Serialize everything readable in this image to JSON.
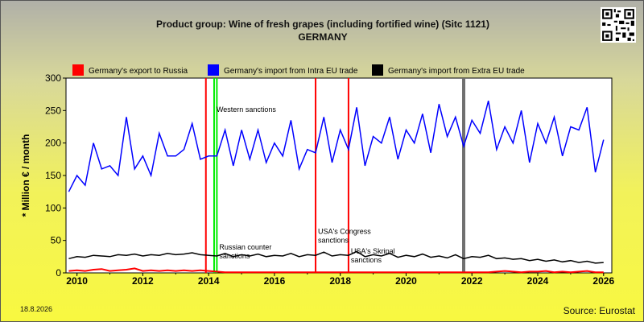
{
  "header": {
    "title": "Product group: Wine of fresh grapes (including fortified wine) (Sitc 1121)",
    "subtitle": "GERMANY"
  },
  "footer": {
    "date": "18.8.2026",
    "source": "Source: Eurostat"
  },
  "colors": {
    "export_russia": "#ff0000",
    "intra_eu": "#0000ff",
    "extra_eu": "#000000",
    "event_red": "#ff0000",
    "event_green": "#00ee00",
    "event_gray": "#707070"
  },
  "chart_data": {
    "type": "line",
    "title": "Product group: Wine of fresh grapes (including fortified wine) (Sitc 1121)",
    "subtitle": "GERMANY",
    "ylabel": "* Million € / month",
    "xlabel": "",
    "ylim": [
      0,
      300
    ],
    "yticks": [
      0,
      50,
      100,
      150,
      200,
      250,
      300
    ],
    "xlim": [
      "2009-09",
      "2026-04"
    ],
    "xticks": [
      "2010",
      "2012",
      "2014",
      "2016",
      "2018",
      "2020",
      "2022",
      "2024",
      "2026"
    ],
    "grid": false,
    "legend_position": "top",
    "series": [
      {
        "name": "Germany's export to Russia",
        "color": "#ff0000",
        "resolution": "quarterly",
        "x": [
          "2009-10",
          "2010-01",
          "2010-04",
          "2010-07",
          "2010-10",
          "2011-01",
          "2011-04",
          "2011-07",
          "2011-10",
          "2012-01",
          "2012-04",
          "2012-07",
          "2012-10",
          "2013-01",
          "2013-04",
          "2013-07",
          "2013-10",
          "2014-01",
          "2014-04",
          "2014-07",
          "2014-10",
          "2015-01",
          "2015-04",
          "2015-07",
          "2015-10",
          "2016-01",
          "2016-04",
          "2016-07",
          "2016-10",
          "2017-01",
          "2017-04",
          "2017-07",
          "2017-10",
          "2018-01",
          "2018-04",
          "2018-07",
          "2018-10",
          "2019-01",
          "2019-04",
          "2019-07",
          "2019-10",
          "2020-01",
          "2020-04",
          "2020-07",
          "2020-10",
          "2021-01",
          "2021-04",
          "2021-07",
          "2021-10",
          "2022-01",
          "2022-04",
          "2022-07",
          "2022-10",
          "2023-01",
          "2023-04",
          "2023-07",
          "2023-10",
          "2024-01",
          "2024-04",
          "2024-07",
          "2024-10",
          "2025-01",
          "2025-04",
          "2025-07",
          "2025-10",
          "2026-01"
        ],
        "values": [
          3,
          4,
          3,
          5,
          6,
          3,
          4,
          5,
          7,
          3,
          4,
          3,
          4,
          3,
          4,
          3,
          4,
          3,
          2,
          1,
          1,
          1,
          1,
          1,
          1,
          1,
          1,
          1,
          1,
          1,
          1,
          1,
          1,
          1,
          1,
          1,
          1,
          1,
          1,
          1,
          1,
          1,
          1,
          1,
          1,
          1,
          1,
          1,
          1,
          1,
          1,
          1,
          2,
          3,
          2,
          1,
          2,
          2,
          3,
          1,
          2,
          1,
          2,
          3,
          1,
          1
        ]
      },
      {
        "name": "Germany's import from Intra EU trade",
        "color": "#0000ff",
        "resolution": "quarterly",
        "x": [
          "2009-10",
          "2010-01",
          "2010-04",
          "2010-07",
          "2010-10",
          "2011-01",
          "2011-04",
          "2011-07",
          "2011-10",
          "2012-01",
          "2012-04",
          "2012-07",
          "2012-10",
          "2013-01",
          "2013-04",
          "2013-07",
          "2013-10",
          "2014-01",
          "2014-04",
          "2014-07",
          "2014-10",
          "2015-01",
          "2015-04",
          "2015-07",
          "2015-10",
          "2016-01",
          "2016-04",
          "2016-07",
          "2016-10",
          "2017-01",
          "2017-04",
          "2017-07",
          "2017-10",
          "2018-01",
          "2018-04",
          "2018-07",
          "2018-10",
          "2019-01",
          "2019-04",
          "2019-07",
          "2019-10",
          "2020-01",
          "2020-04",
          "2020-07",
          "2020-10",
          "2021-01",
          "2021-04",
          "2021-07",
          "2021-10",
          "2022-01",
          "2022-04",
          "2022-07",
          "2022-10",
          "2023-01",
          "2023-04",
          "2023-07",
          "2023-10",
          "2024-01",
          "2024-04",
          "2024-07",
          "2024-10",
          "2025-01",
          "2025-04",
          "2025-07",
          "2025-10",
          "2026-01"
        ],
        "values": [
          125,
          150,
          135,
          200,
          160,
          165,
          150,
          240,
          160,
          180,
          150,
          215,
          180,
          180,
          190,
          230,
          175,
          180,
          180,
          220,
          165,
          220,
          175,
          220,
          170,
          200,
          180,
          235,
          160,
          190,
          185,
          240,
          170,
          220,
          190,
          255,
          165,
          210,
          200,
          240,
          175,
          220,
          200,
          245,
          185,
          260,
          210,
          240,
          195,
          235,
          215,
          265,
          190,
          225,
          200,
          250,
          170,
          230,
          200,
          240,
          180,
          225,
          220,
          255,
          155,
          205
        ]
      },
      {
        "name": "Germany's import from Extra EU trade",
        "color": "#000000",
        "resolution": "quarterly",
        "x": [
          "2009-10",
          "2010-01",
          "2010-04",
          "2010-07",
          "2010-10",
          "2011-01",
          "2011-04",
          "2011-07",
          "2011-10",
          "2012-01",
          "2012-04",
          "2012-07",
          "2012-10",
          "2013-01",
          "2013-04",
          "2013-07",
          "2013-10",
          "2014-01",
          "2014-04",
          "2014-07",
          "2014-10",
          "2015-01",
          "2015-04",
          "2015-07",
          "2015-10",
          "2016-01",
          "2016-04",
          "2016-07",
          "2016-10",
          "2017-01",
          "2017-04",
          "2017-07",
          "2017-10",
          "2018-01",
          "2018-04",
          "2018-07",
          "2018-10",
          "2019-01",
          "2019-04",
          "2019-07",
          "2019-10",
          "2020-01",
          "2020-04",
          "2020-07",
          "2020-10",
          "2021-01",
          "2021-04",
          "2021-07",
          "2021-10",
          "2022-01",
          "2022-04",
          "2022-07",
          "2022-10",
          "2023-01",
          "2023-04",
          "2023-07",
          "2023-10",
          "2024-01",
          "2024-04",
          "2024-07",
          "2024-10",
          "2025-01",
          "2025-04",
          "2025-07",
          "2025-10",
          "2026-01"
        ],
        "values": [
          22,
          25,
          24,
          27,
          26,
          25,
          28,
          27,
          29,
          26,
          28,
          27,
          30,
          28,
          29,
          31,
          28,
          27,
          26,
          30,
          25,
          28,
          26,
          29,
          25,
          27,
          26,
          30,
          25,
          28,
          27,
          32,
          26,
          28,
          27,
          33,
          25,
          28,
          26,
          30,
          24,
          27,
          25,
          29,
          24,
          26,
          23,
          28,
          22,
          25,
          24,
          27,
          22,
          23,
          21,
          22,
          19,
          21,
          18,
          20,
          17,
          19,
          16,
          18,
          15,
          16
        ]
      }
    ],
    "annotations": [
      {
        "date": "2013-12",
        "color": "#ff0000",
        "label": ""
      },
      {
        "date": "2014-03",
        "color": "#00ee00",
        "label": "Western sanctions",
        "label_y": 248
      },
      {
        "date": "2014-04",
        "color": "#00ee00",
        "label": "Russian counter sanctions",
        "label_y": 36
      },
      {
        "date": "2017-04",
        "color": "#ff0000",
        "label": "USA's Congress sanctions",
        "label_y": 60
      },
      {
        "date": "2018-04",
        "color": "#ff0000",
        "label": "USA's Skripal sanctions",
        "label_y": 30
      },
      {
        "date": "2021-10",
        "color": "#707070",
        "label": ""
      }
    ]
  }
}
